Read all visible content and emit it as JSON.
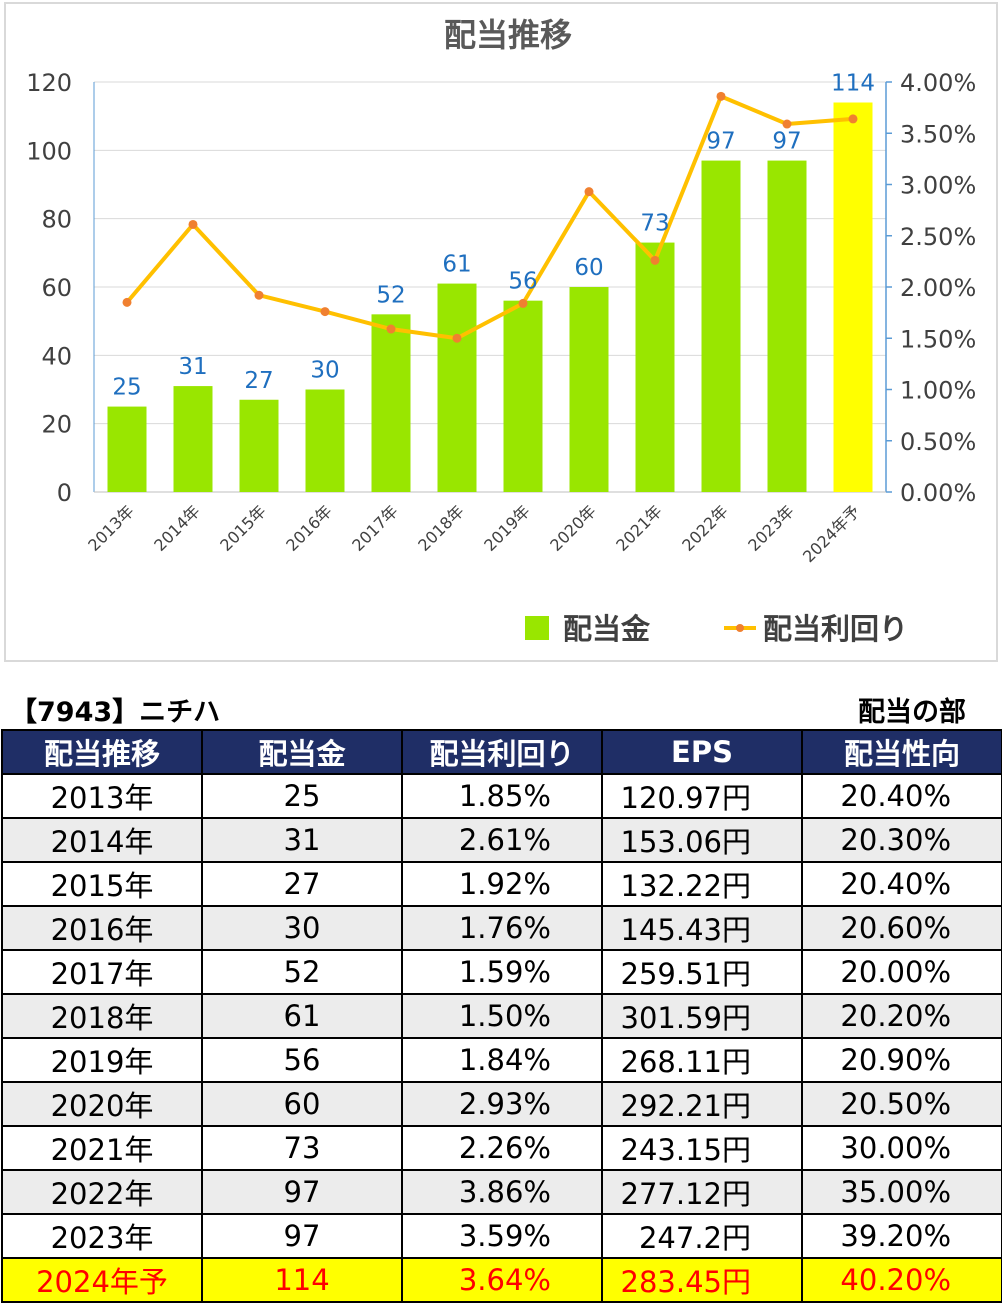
{
  "chart_data": {
    "type": "bar+line",
    "title": "配当推移",
    "categories": [
      "2013年",
      "2014年",
      "2015年",
      "2016年",
      "2017年",
      "2018年",
      "2019年",
      "2020年",
      "2021年",
      "2022年",
      "2023年",
      "2024年予"
    ],
    "series": [
      {
        "name": "配当金",
        "type": "bar",
        "axis": "left",
        "values": [
          25,
          31,
          27,
          30,
          52,
          61,
          56,
          60,
          73,
          97,
          97,
          114
        ],
        "color": "#99e600",
        "highlight_last_color": "#ffff00"
      },
      {
        "name": "配当利回り",
        "type": "line",
        "axis": "right",
        "values": [
          1.85,
          2.61,
          1.92,
          1.76,
          1.59,
          1.5,
          1.84,
          2.93,
          2.26,
          3.86,
          3.59,
          3.64
        ],
        "color": "#ffc000",
        "marker_color": "#f08030"
      }
    ],
    "data_labels": [
      "25",
      "31",
      "27",
      "30",
      "52",
      "61",
      "56",
      "60",
      "73",
      "97",
      "97",
      "114"
    ],
    "y_left": {
      "min": 0,
      "max": 120,
      "ticks": [
        "0",
        "20",
        "40",
        "60",
        "80",
        "100",
        "120"
      ]
    },
    "y_right": {
      "min": 0,
      "max": 4,
      "ticks": [
        "0.00%",
        "0.50%",
        "1.00%",
        "1.50%",
        "2.00%",
        "2.50%",
        "3.00%",
        "3.50%",
        "4.00%"
      ]
    },
    "grid": true,
    "legend_position": "bottom-right",
    "label_color": "#1f6fbf"
  },
  "header": {
    "code_title": "【7943】ニチハ",
    "section_label": "配当の部"
  },
  "table": {
    "columns": [
      "配当推移",
      "配当金",
      "配当利回り",
      "EPS",
      "配当性向"
    ],
    "rows": [
      [
        "2013年",
        "25",
        "1.85%",
        "120.97円",
        "20.40%"
      ],
      [
        "2014年",
        "31",
        "2.61%",
        "153.06円",
        "20.30%"
      ],
      [
        "2015年",
        "27",
        "1.92%",
        "132.22円",
        "20.40%"
      ],
      [
        "2016年",
        "30",
        "1.76%",
        "145.43円",
        "20.60%"
      ],
      [
        "2017年",
        "52",
        "1.59%",
        "259.51円",
        "20.00%"
      ],
      [
        "2018年",
        "61",
        "1.50%",
        "301.59円",
        "20.20%"
      ],
      [
        "2019年",
        "56",
        "1.84%",
        "268.11円",
        "20.90%"
      ],
      [
        "2020年",
        "60",
        "2.93%",
        "292.21円",
        "20.50%"
      ],
      [
        "2021年",
        "73",
        "2.26%",
        "243.15円",
        "30.00%"
      ],
      [
        "2022年",
        "97",
        "3.86%",
        "277.12円",
        "35.00%"
      ],
      [
        "2023年",
        "97",
        "3.59%",
        "247.2円",
        "39.20%"
      ],
      [
        "2024年予",
        "114",
        "3.64%",
        "283.45円",
        "40.20%"
      ]
    ]
  }
}
